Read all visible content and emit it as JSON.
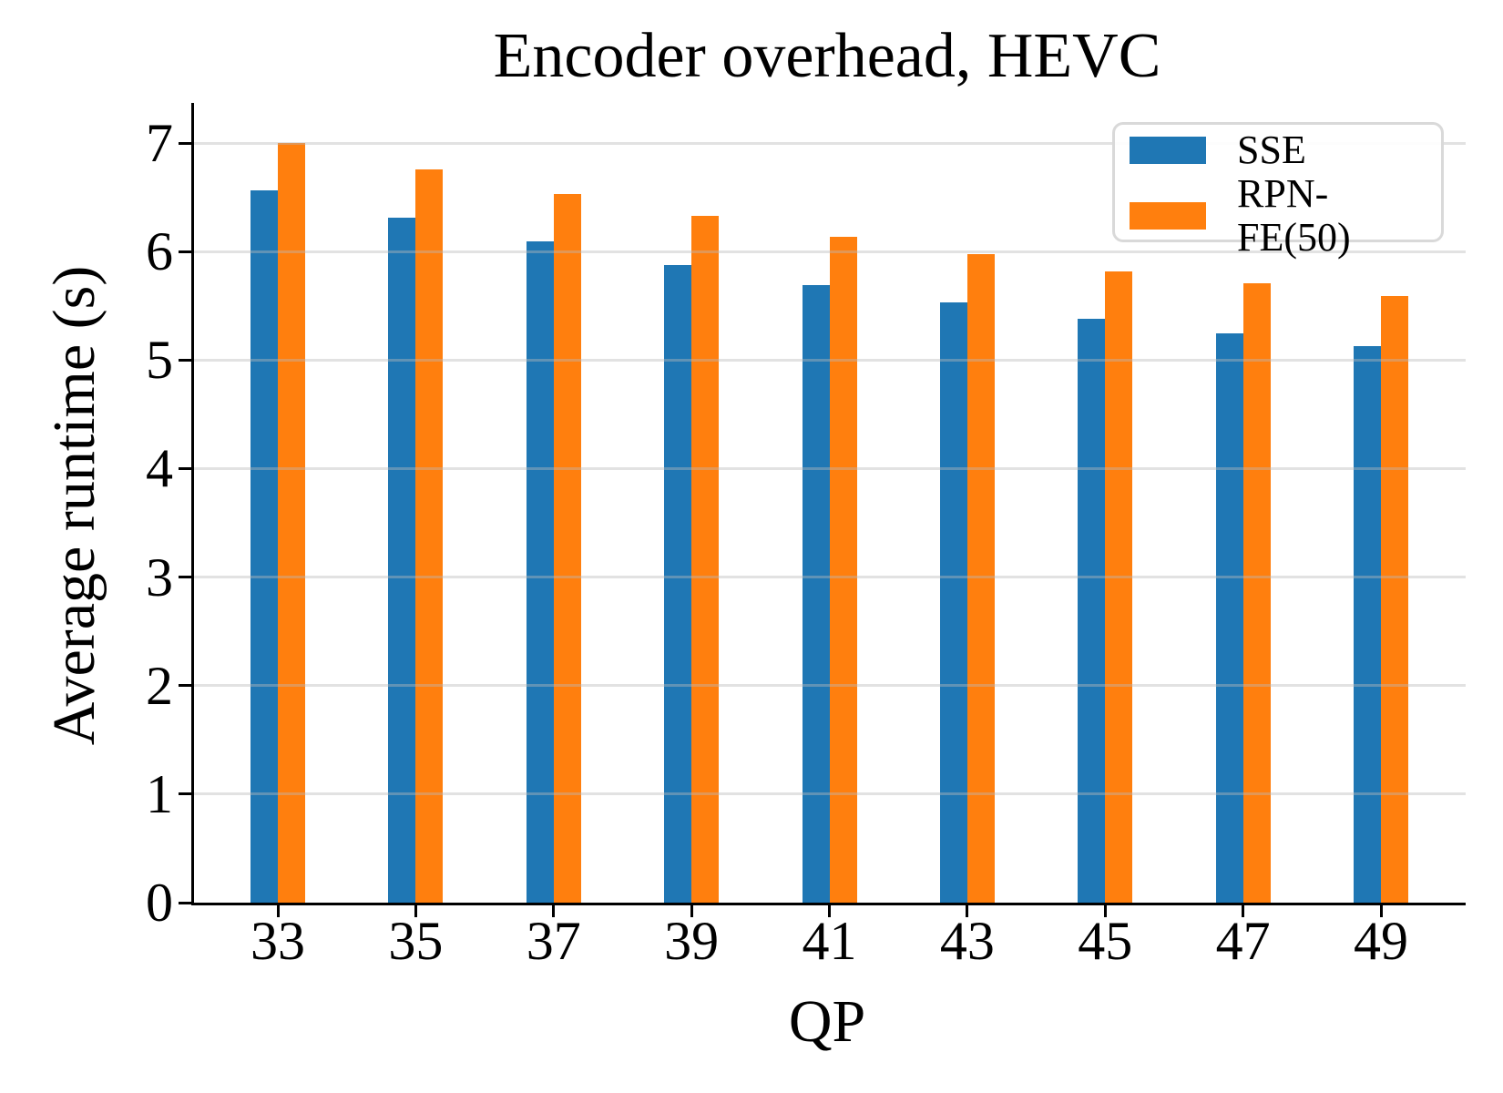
{
  "title": "Encoder overhead, HEVC",
  "axes": {
    "xlabel": "QP",
    "ylabel": "Average runtime (s)"
  },
  "legend": {
    "items": [
      {
        "label": "SSE",
        "color": "#1f77b4"
      },
      {
        "label": "RPN-FE(50)",
        "color": "#ff7f0e"
      }
    ]
  },
  "colors": {
    "sse_blue": "#1f77b4",
    "rpn_orange": "#ff7f0e",
    "grid": "#e6e6e6",
    "spine": "#000000",
    "background": "#ffffff",
    "legend_border": "#d9d9d9"
  },
  "chart_data": {
    "type": "bar",
    "title": "Encoder overhead, HEVC",
    "xlabel": "QP",
    "ylabel": "Average runtime (s)",
    "categories": [
      "33",
      "35",
      "37",
      "39",
      "41",
      "43",
      "45",
      "47",
      "49"
    ],
    "series": [
      {
        "name": "SSE",
        "color": "#1f77b4",
        "values": [
          6.56,
          6.31,
          6.09,
          5.88,
          5.69,
          5.53,
          5.38,
          5.25,
          5.13
        ]
      },
      {
        "name": "RPN-FE(50)",
        "color": "#ff7f0e",
        "values": [
          7.0,
          6.76,
          6.53,
          6.33,
          6.14,
          5.98,
          5.82,
          5.71,
          5.59
        ]
      }
    ],
    "ylim": [
      0,
      7.37
    ],
    "yticks": [
      0,
      1,
      2,
      3,
      4,
      5,
      6,
      7
    ],
    "grid": true,
    "grid_axis": "y",
    "legend_position": "upper right"
  }
}
